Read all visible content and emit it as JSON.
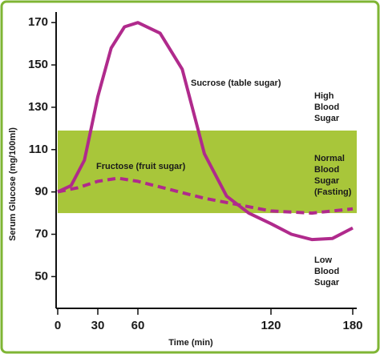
{
  "chart_data": {
    "type": "line",
    "x_label": "Time (min)",
    "y_label": "Serum Glucose (mg/100ml)",
    "xlim": [
      0,
      180
    ],
    "xticks": [
      0,
      30,
      60,
      120,
      180
    ],
    "ylim": [
      35,
      175
    ],
    "yticks": [
      50,
      70,
      90,
      110,
      130,
      150,
      170
    ],
    "band": {
      "range": [
        80,
        119
      ],
      "color": "#a8c63a"
    },
    "zones": [
      {
        "lines": [
          "High",
          "Blood",
          "Sugar"
        ]
      },
      {
        "lines": [
          "Normal",
          "Blood",
          "Sugar",
          "(Fasting)"
        ]
      },
      {
        "lines": [
          "Low",
          "Blood",
          "Sugar"
        ]
      }
    ],
    "series": [
      {
        "name": "Sucrose (table sugar)",
        "color": "#b02a8c",
        "style": "solid",
        "x": [
          0,
          10,
          20,
          25,
          30,
          40,
          50,
          60,
          70,
          80,
          90,
          100,
          110,
          120,
          135,
          150,
          165,
          180
        ],
        "values": [
          90,
          93,
          105,
          120,
          135,
          158,
          168,
          170,
          165,
          148,
          108,
          88,
          80,
          75,
          70,
          67.5,
          68,
          73
        ]
      },
      {
        "name": "Fructose (fruit sugar)",
        "color": "#b02a8c",
        "style": "dashed",
        "x": [
          0,
          15,
          30,
          45,
          60,
          90,
          120,
          150,
          180
        ],
        "values": [
          90,
          92,
          95,
          96.5,
          95,
          87,
          81,
          80,
          82
        ]
      }
    ]
  }
}
